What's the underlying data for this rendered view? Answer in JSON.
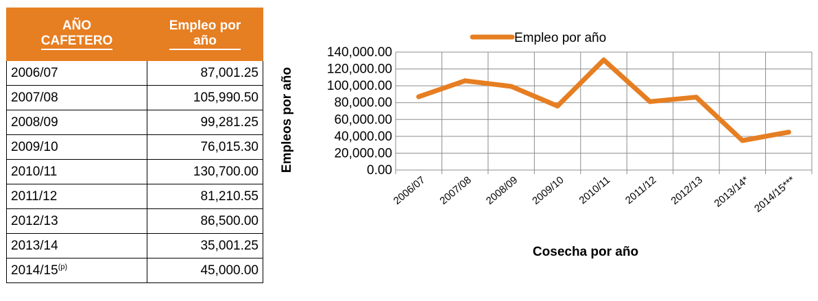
{
  "table": {
    "headers": [
      "AÑO CAFETERO",
      "Empleo por año"
    ],
    "header_lines": [
      [
        "AÑO",
        "CAFETERO"
      ],
      [
        "Empleo por",
        "año"
      ]
    ],
    "rows": [
      {
        "year": "2006/07",
        "sup": "",
        "value": "87,001.25"
      },
      {
        "year": "2007/08",
        "sup": "",
        "value": "105,990.50"
      },
      {
        "year": "2008/09",
        "sup": "",
        "value": "99,281.25"
      },
      {
        "year": "2009/10",
        "sup": "",
        "value": "76,015.30"
      },
      {
        "year": "2010/11",
        "sup": "",
        "value": "130,700.00"
      },
      {
        "year": "2011/12",
        "sup": "",
        "value": "81,210.55"
      },
      {
        "year": "2012/13",
        "sup": "",
        "value": "86,500.00"
      },
      {
        "year": "2013/14",
        "sup": "",
        "value": "35,001.25"
      },
      {
        "year": "2014/15",
        "sup": "(p)",
        "value": "45,000.00"
      }
    ],
    "header_color": "#e67e22"
  },
  "chart_data": {
    "type": "line",
    "categories": [
      "2006/07",
      "2007/08",
      "2008/09",
      "2009/10",
      "2010/11",
      "2011/12",
      "2012/13",
      "2013/14*",
      "2014/15***"
    ],
    "series": [
      {
        "name": "Empleo por año",
        "color": "#e67e22",
        "values": [
          87001.25,
          105990.5,
          99281.25,
          76015.3,
          130700,
          81210.55,
          86500,
          35001.25,
          45000
        ]
      }
    ],
    "title": "",
    "xlabel": "Cosecha por año",
    "ylabel": "Empleos por año",
    "ylim": [
      0,
      140000
    ],
    "yticks": [
      0,
      20000,
      40000,
      60000,
      80000,
      100000,
      120000,
      140000
    ],
    "ytick_labels": [
      "0.00",
      "20,000.00",
      "40,000.00",
      "60,000.00",
      "80,000.00",
      "100,000.00",
      "120,000.00",
      "140,000.00"
    ],
    "grid": true,
    "legend_position": "top"
  }
}
